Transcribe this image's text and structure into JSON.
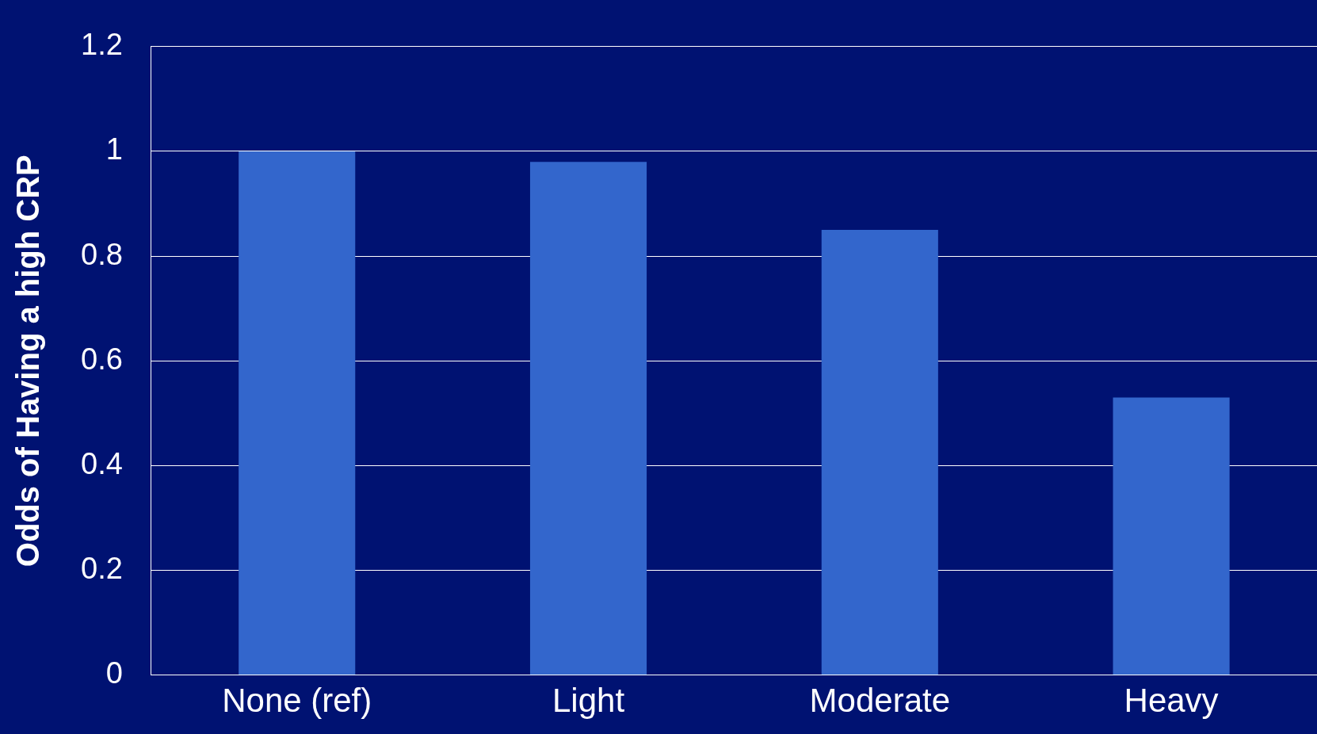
{
  "chart_data": {
    "type": "bar",
    "ylabel": "Odds of Having a high CRP",
    "categories": [
      "None (ref)",
      "Light",
      "Moderate",
      "Heavy"
    ],
    "values": [
      1,
      0.98,
      0.85,
      0.53
    ],
    "color": "#3366cc",
    "ylim": [
      0,
      1.2
    ],
    "yticks": [
      0,
      0.2,
      0.4,
      0.6,
      0.8,
      1,
      1.2
    ],
    "grid": "y"
  }
}
